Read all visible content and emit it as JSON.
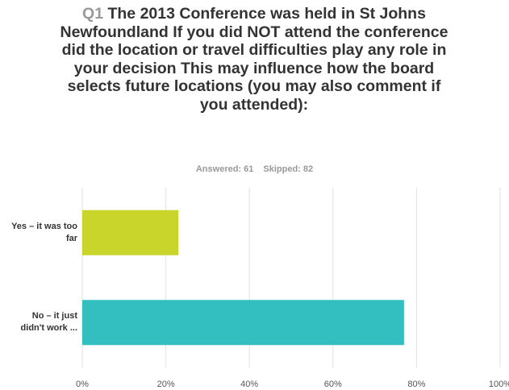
{
  "chart_data": {
    "type": "bar",
    "orientation": "horizontal",
    "question_number": "Q1",
    "title": "The 2013 Conference was held in St Johns Newfoundland If you did NOT attend the conference did the location or travel difficulties play any role in your decision This may influence how the board selects future locations (you may also comment if you attended):",
    "answered": "Answered: 61",
    "skipped": "Skipped: 82",
    "categories": [
      "Yes – it was too far",
      "No – it just didn't work ..."
    ],
    "values": [
      23,
      77
    ],
    "colors": [
      "#cad52c",
      "#33bfc0"
    ],
    "xlim": [
      0,
      100
    ],
    "xticks": [
      {
        "value": 0,
        "label": "0%"
      },
      {
        "value": 20,
        "label": "20%"
      },
      {
        "value": 40,
        "label": "40%"
      },
      {
        "value": 60,
        "label": "60%"
      },
      {
        "value": 80,
        "label": "80%"
      },
      {
        "value": 100,
        "label": "100%"
      }
    ],
    "grid": true
  }
}
